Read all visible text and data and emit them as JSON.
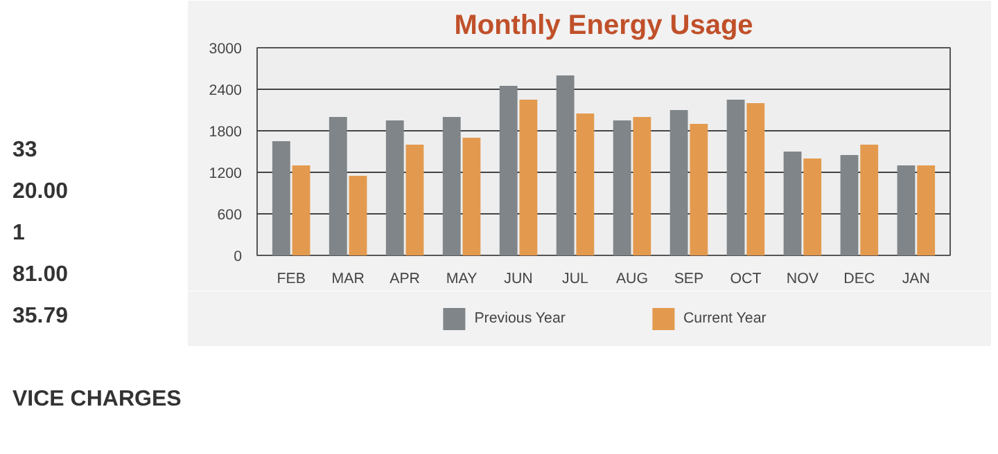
{
  "chart_data": {
    "type": "bar",
    "title": "Monthly Energy Usage",
    "categories": [
      "FEB",
      "MAR",
      "APR",
      "MAY",
      "JUN",
      "JUL",
      "AUG",
      "SEP",
      "OCT",
      "NOV",
      "DEC",
      "JAN"
    ],
    "series": [
      {
        "name": "Previous Year",
        "color": "#7f8588",
        "values": [
          1650,
          2000,
          1950,
          2000,
          2450,
          2600,
          1950,
          2100,
          2250,
          1500,
          1450,
          1300
        ]
      },
      {
        "name": "Current Year",
        "color": "#e39a4e",
        "values": [
          1300,
          1150,
          1600,
          1700,
          2250,
          2050,
          2000,
          1900,
          2200,
          1400,
          1600,
          1300
        ]
      }
    ],
    "ylim": [
      0,
      3000
    ],
    "yticks": [
      0,
      600,
      1200,
      1800,
      2400,
      3000
    ],
    "grid": "y",
    "legend": "bottom",
    "annotations": [
      "33",
      "20.00",
      "1",
      "81.00",
      "35.79",
      "VICE CHARGES"
    ]
  }
}
